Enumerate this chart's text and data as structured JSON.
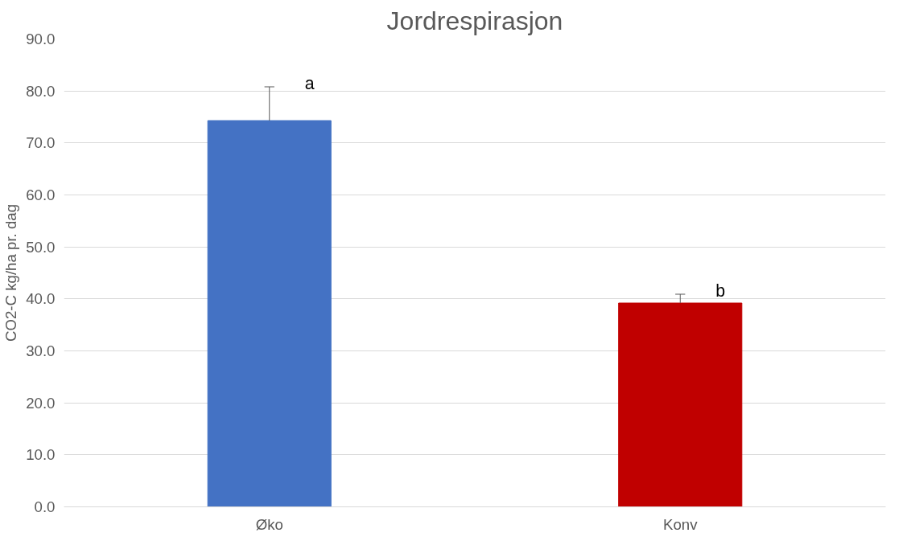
{
  "chart_data": {
    "type": "bar",
    "title": "Jordrespirasjon",
    "ylabel": "CO2-C kg/ha pr. dag",
    "categories": [
      "Øko",
      "Konv"
    ],
    "values": [
      74.3,
      39.2
    ],
    "colors": [
      "#4472c4",
      "#c00000"
    ],
    "errors": [
      [
        74.3,
        80.8
      ],
      [
        39.2,
        40.9
      ]
    ],
    "ylim": [
      0,
      90
    ],
    "yticks": [
      {
        "value": 0,
        "label": "0.0"
      },
      {
        "value": 10,
        "label": "10.0"
      },
      {
        "value": 20,
        "label": "20.0"
      },
      {
        "value": 30,
        "label": "30.0"
      },
      {
        "value": 40,
        "label": "40.0"
      },
      {
        "value": 50,
        "label": "50.0"
      },
      {
        "value": 60,
        "label": "60.0"
      },
      {
        "value": 70,
        "label": "70.0"
      },
      {
        "value": 80,
        "label": "80.0"
      },
      {
        "value": 90,
        "label": "90.0"
      }
    ],
    "annotations": [
      {
        "text": "a",
        "x": "Øko",
        "y": 80.8
      },
      {
        "text": "b",
        "x": "Konv",
        "y": 40.9
      }
    ],
    "grid": "y"
  }
}
